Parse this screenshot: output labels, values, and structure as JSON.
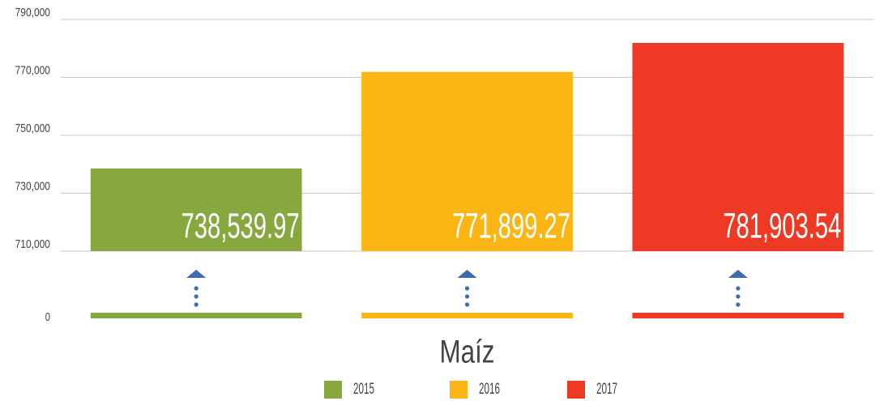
{
  "chart_data": {
    "type": "bar",
    "categories": [
      "Maíz"
    ],
    "series": [
      {
        "name": "2015",
        "color": "#86a83f",
        "values": [
          738539.97
        ],
        "value_labels": [
          "738,539.97"
        ]
      },
      {
        "name": "2016",
        "color": "#fbb615",
        "values": [
          771899.27
        ],
        "value_labels": [
          "771,899.27"
        ]
      },
      {
        "name": "2017",
        "color": "#ee3a24",
        "values": [
          781903.54
        ],
        "value_labels": [
          "781,903.54"
        ]
      }
    ],
    "ylim": [
      0,
      790000
    ],
    "axis_break": [
      0,
      710000
    ],
    "yticks": [
      0,
      {
        "value": 710000,
        "label": "710,000"
      },
      {
        "value": 730000,
        "label": "730,000"
      },
      {
        "value": 750000,
        "label": "750,000"
      },
      {
        "value": 770000,
        "label": "770,000"
      },
      {
        "value": 790000,
        "label": "790,000"
      }
    ],
    "grid": true,
    "legend": "bottom"
  }
}
